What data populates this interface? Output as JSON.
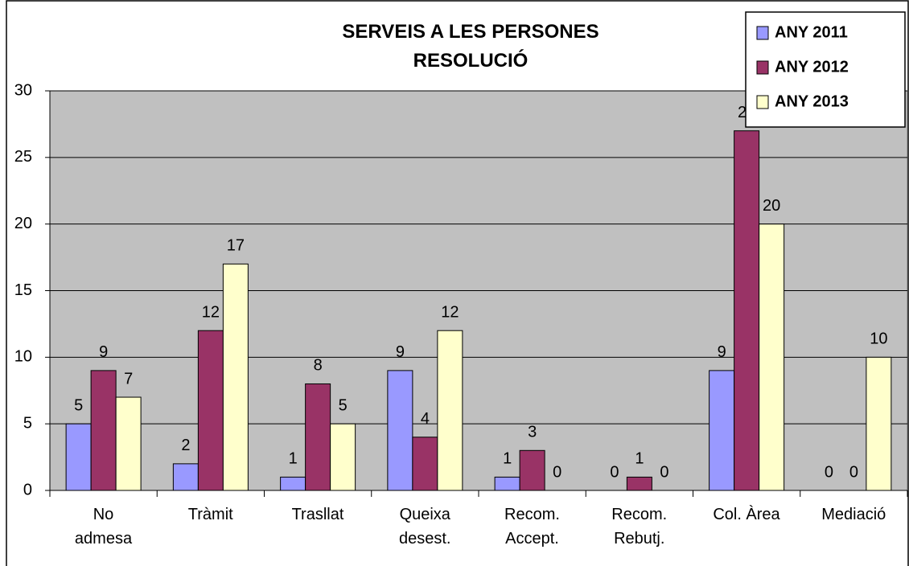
{
  "chart_data": {
    "type": "bar",
    "title": "SERVEIS A LES PERSONES\nRESOLUCIÓ",
    "categories": [
      "No\nadmesa",
      "Tràmit",
      "Trasllat",
      "Queixa\ndesest.",
      "Recom.\nAccept.",
      "Recom.\nRebutj.",
      "Col. Àrea",
      "Mediació"
    ],
    "series": [
      {
        "name": "ANY 2011",
        "color": "#9999ff",
        "values": [
          5,
          2,
          1,
          9,
          1,
          0,
          9,
          0
        ]
      },
      {
        "name": "ANY 2012",
        "color": "#993366",
        "values": [
          9,
          12,
          8,
          4,
          3,
          1,
          27,
          0
        ]
      },
      {
        "name": "ANY 2013",
        "color": "#ffffcc",
        "values": [
          7,
          17,
          5,
          12,
          0,
          0,
          20,
          10
        ]
      }
    ],
    "ylim": [
      0,
      30
    ],
    "yticks": [
      0,
      5,
      10,
      15,
      20,
      25,
      30
    ],
    "grid": true,
    "legend": "top-right",
    "plot_background": "#c0c0c0"
  }
}
